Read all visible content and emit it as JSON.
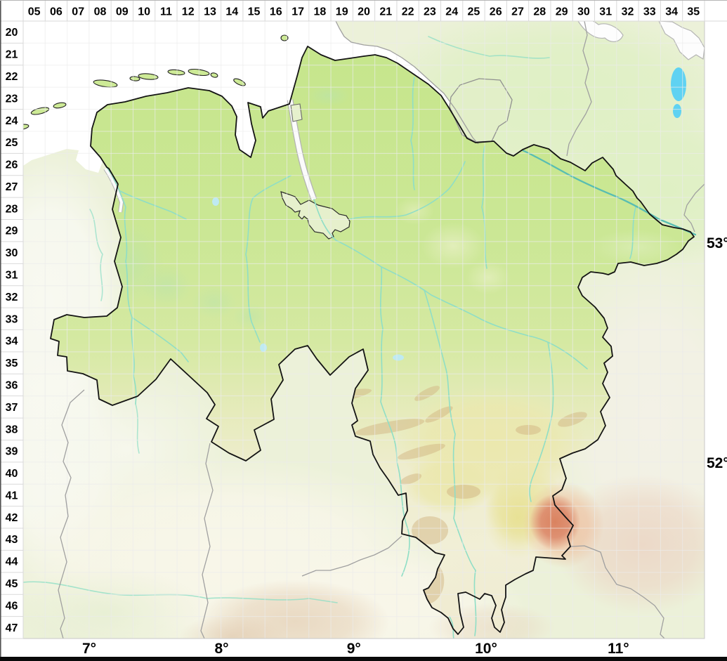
{
  "grid": {
    "column_labels": [
      "05",
      "06",
      "07",
      "08",
      "09",
      "10",
      "11",
      "12",
      "13",
      "14",
      "15",
      "16",
      "17",
      "18",
      "19",
      "20",
      "21",
      "22",
      "23",
      "24",
      "25",
      "26",
      "27",
      "28",
      "29",
      "30",
      "31",
      "32",
      "33",
      "34",
      "35"
    ],
    "row_labels": [
      "20",
      "21",
      "22",
      "23",
      "24",
      "25",
      "26",
      "27",
      "28",
      "29",
      "30",
      "31",
      "32",
      "33",
      "34",
      "35",
      "36",
      "37",
      "38",
      "39",
      "40",
      "41",
      "42",
      "43",
      "44",
      "45",
      "46",
      "47"
    ]
  },
  "axes": {
    "longitude_labels": [
      "7°",
      "8°",
      "9°",
      "10°",
      "11°"
    ],
    "latitude_labels": [
      "53°",
      "52°"
    ]
  },
  "palette": {
    "sea": "#ffffff",
    "lowland_green": "#c9e78f",
    "outside_green": "#e1efc8",
    "south_cream": "#f4f2e2",
    "harz_red": "#db8365",
    "hill_tan": "#d2b583",
    "river_cyan": "#8fdec6",
    "elbe_teal": "#58bdb2",
    "lake_blue": "#5fd2f2",
    "state_border": "#141414",
    "minor_border": "#a0a0a0",
    "grid_line": "#d9d9d9",
    "label_color": "#000000"
  }
}
